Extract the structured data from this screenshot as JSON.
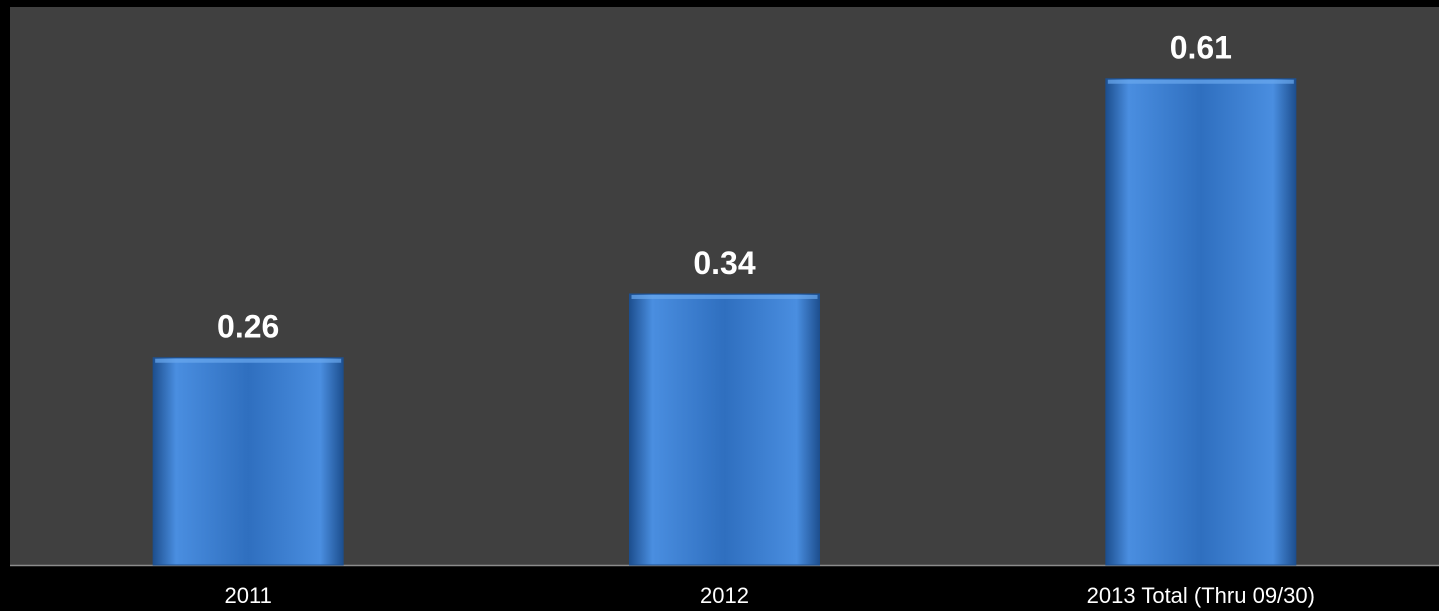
{
  "chart_data": {
    "type": "bar",
    "categories": [
      "2011",
      "2012",
      "2013 Total (Thru 09/30)"
    ],
    "values": [
      0.26,
      0.34,
      0.61
    ],
    "data_labels": [
      "0.26",
      "0.34",
      "0.61"
    ],
    "title": "",
    "xlabel": "",
    "ylabel": "",
    "ylim": [
      0,
      0.7
    ],
    "grid": false,
    "legend": "none",
    "colors": {
      "page_background": "#000000",
      "plot_background": "#404040",
      "bar_fill_light": "#4a8ee0",
      "bar_fill_dark": "#2f6fbf",
      "bar_edge": "#1d4f8f",
      "data_label": "#ffffff",
      "tick_label": "#ffffff",
      "axis_line": "#8c8c8c"
    }
  }
}
